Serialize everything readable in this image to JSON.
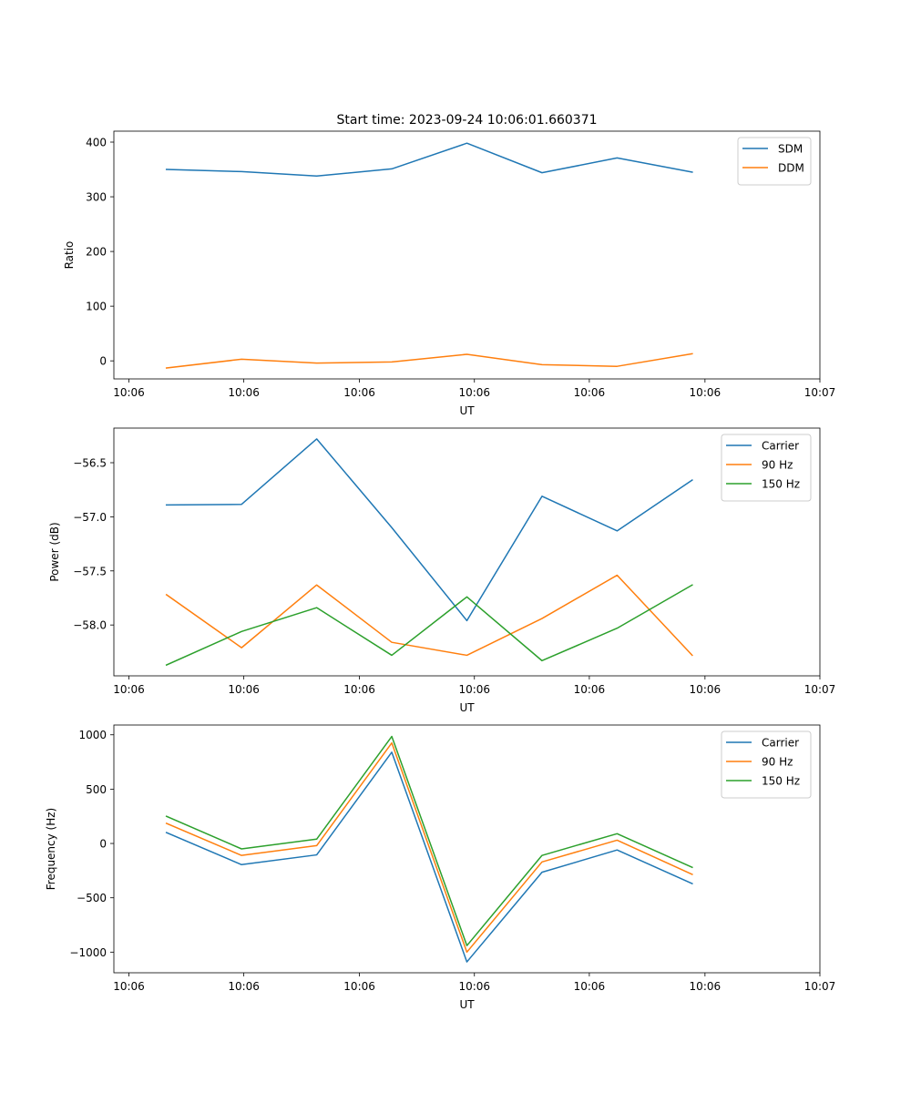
{
  "figure_title": "Start time: 2023-09-24 10:06:01.660371",
  "x_tick_labels": [
    "10:06",
    "10:06",
    "10:06",
    "10:06",
    "10:06",
    "10:06",
    "10:07"
  ],
  "chart_data": [
    {
      "type": "line",
      "title": "Start time: 2023-09-24 10:06:01.660371",
      "xlabel": "UT",
      "ylabel": "Ratio",
      "x": [
        1,
        2,
        3,
        4,
        5,
        6,
        7,
        8
      ],
      "xlim": [
        0.3,
        9.7
      ],
      "x_ticks": [
        0.5,
        2.03,
        3.57,
        5.1,
        6.63,
        8.17,
        9.7
      ],
      "ylim": [
        -33,
        420
      ],
      "y_ticks": [
        0,
        100,
        200,
        300,
        400
      ],
      "y_tick_labels": [
        "0",
        "100",
        "200",
        "300",
        "400"
      ],
      "legend_position": "top-right",
      "grid": false,
      "series": [
        {
          "name": "SDM",
          "color": "#1f77b4",
          "values": [
            350,
            346,
            338,
            351,
            398,
            344,
            371,
            345
          ]
        },
        {
          "name": "DDM",
          "color": "#ff7f0e",
          "values": [
            -13,
            3,
            -4,
            -2,
            12,
            -7,
            -10,
            13
          ]
        }
      ]
    },
    {
      "type": "line",
      "title": "",
      "xlabel": "UT",
      "ylabel": "Power (dB)",
      "x": [
        1,
        2,
        3,
        4,
        5,
        6,
        7,
        8
      ],
      "xlim": [
        0.3,
        9.7
      ],
      "x_ticks": [
        0.5,
        2.03,
        3.57,
        5.1,
        6.63,
        8.17,
        9.7
      ],
      "ylim": [
        -58.47,
        -56.18
      ],
      "y_ticks": [
        -56.5,
        -57.0,
        -57.5,
        -58.0
      ],
      "y_tick_labels": [
        "−56.5",
        "−57.0",
        "−57.5",
        "−58.0"
      ],
      "legend_position": "top-right",
      "grid": false,
      "series": [
        {
          "name": "Carrier",
          "color": "#1f77b4",
          "values": [
            -56.89,
            -56.885,
            -56.28,
            -57.1,
            -57.96,
            -56.81,
            -57.13,
            -56.66
          ]
        },
        {
          "name": "90 Hz",
          "color": "#ff7f0e",
          "values": [
            -57.72,
            -58.21,
            -57.63,
            -58.16,
            -58.28,
            -57.94,
            -57.54,
            -58.28
          ]
        },
        {
          "name": "150 Hz",
          "color": "#2ca02c",
          "values": [
            -58.37,
            -58.06,
            -57.84,
            -58.28,
            -57.74,
            -58.33,
            -58.03,
            -57.63
          ]
        }
      ]
    },
    {
      "type": "line",
      "title": "",
      "xlabel": "UT",
      "ylabel": "Frequency (Hz)",
      "x": [
        1,
        2,
        3,
        4,
        5,
        6,
        7,
        8
      ],
      "xlim": [
        0.3,
        9.7
      ],
      "x_ticks": [
        0.5,
        2.03,
        3.57,
        5.1,
        6.63,
        8.17,
        9.7
      ],
      "ylim": [
        -1190,
        1090
      ],
      "y_ticks": [
        1000,
        500,
        0,
        -500,
        -1000
      ],
      "y_tick_labels": [
        "1000",
        "500",
        "0",
        "−500",
        "−1000"
      ],
      "legend_position": "top-right",
      "grid": false,
      "series": [
        {
          "name": "Carrier",
          "color": "#1f77b4",
          "values": [
            100,
            -195,
            -105,
            840,
            -1090,
            -265,
            -60,
            -370
          ]
        },
        {
          "name": "90 Hz",
          "color": "#ff7f0e",
          "values": [
            185,
            -110,
            -20,
            925,
            -1000,
            -170,
            30,
            -285
          ]
        },
        {
          "name": "150 Hz",
          "color": "#2ca02c",
          "values": [
            250,
            -50,
            40,
            985,
            -940,
            -110,
            90,
            -220
          ]
        }
      ]
    }
  ]
}
